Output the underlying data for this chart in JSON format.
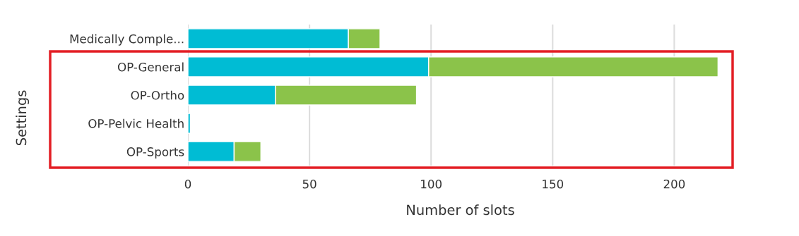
{
  "chart_data": {
    "type": "bar",
    "orientation": "horizontal",
    "stacked": true,
    "categories": [
      "Medically Comple...",
      "OP-General",
      "OP-Ortho",
      "OP-Pelvic Health",
      "OP-Sports"
    ],
    "series": [
      {
        "color": "#00bcd4",
        "values": [
          66,
          99,
          36,
          1,
          19
        ]
      },
      {
        "color": "#8bc34a",
        "values": [
          13,
          119,
          58,
          null,
          11
        ]
      }
    ],
    "xlim": [
      0,
      224
    ],
    "xticks": [
      0,
      50,
      100,
      150,
      200
    ],
    "xlabel": "Number of slots",
    "ylabel": "Settings",
    "grid": "x",
    "legend": false
  }
}
